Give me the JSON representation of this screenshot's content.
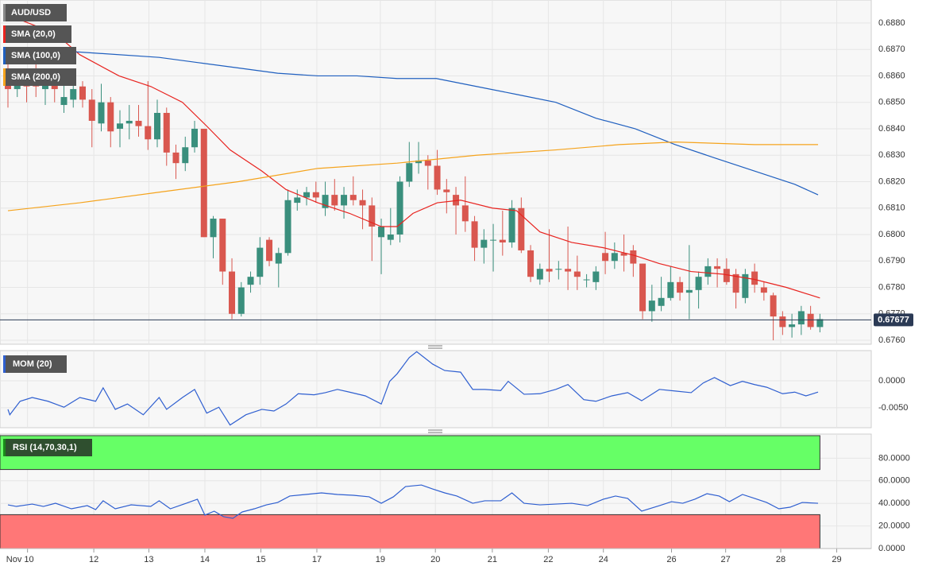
{
  "chart_data": [
    {
      "type": "candlestick",
      "title": "AUD/USD",
      "up_color": "#3a8f7d",
      "down_color": "#d9574f",
      "candles": {
        "open": [
          0.686,
          0.6855,
          0.6858,
          0.686,
          0.6855,
          0.6858,
          0.6849,
          0.6851,
          0.6856,
          0.6851,
          0.6842,
          0.685,
          0.684,
          0.6842,
          0.6843,
          0.6841,
          0.6836,
          0.6846,
          0.6831,
          0.6827,
          0.6833,
          0.684,
          0.6799,
          0.6806,
          0.6786,
          0.677,
          0.6781,
          0.6784,
          0.6798,
          0.6789,
          0.6793,
          0.6812,
          0.6814,
          0.6816,
          0.681,
          0.6815,
          0.6811,
          0.6815,
          0.6813,
          0.6811,
          0.6799,
          0.6798,
          0.68,
          0.682,
          0.6827,
          0.6828,
          0.6826,
          0.6817,
          0.6815,
          0.6811,
          0.6805,
          0.6795,
          0.6798,
          0.6798,
          0.6797,
          0.681,
          0.6794,
          0.6783,
          0.6787,
          0.6787,
          0.6787,
          0.6786,
          0.6783,
          0.6782,
          0.6793,
          0.679,
          0.6793,
          0.6794,
          0.6789,
          0.6771,
          0.6773,
          0.6776,
          0.6782,
          0.6778,
          0.6779,
          0.6784,
          0.6788,
          0.6787,
          0.6785,
          0.6776,
          0.6786,
          0.678,
          0.6777,
          0.6769,
          0.6765,
          0.6766,
          0.677,
          0.6765
        ],
        "high": [
          0.6866,
          0.686,
          0.6862,
          0.6866,
          0.686,
          0.6861,
          0.6858,
          0.686,
          0.6858,
          0.6855,
          0.6857,
          0.6852,
          0.6847,
          0.6849,
          0.6849,
          0.6858,
          0.6851,
          0.6848,
          0.6834,
          0.6837,
          0.6843,
          0.684,
          0.6807,
          0.6806,
          0.6791,
          0.6782,
          0.6786,
          0.6799,
          0.6799,
          0.6795,
          0.6817,
          0.6817,
          0.6818,
          0.682,
          0.682,
          0.6821,
          0.6818,
          0.6822,
          0.6817,
          0.6814,
          0.6806,
          0.681,
          0.6822,
          0.6835,
          0.6835,
          0.683,
          0.6832,
          0.6821,
          0.6818,
          0.6822,
          0.6807,
          0.6802,
          0.6804,
          0.6809,
          0.6813,
          0.6814,
          0.6796,
          0.6789,
          0.6802,
          0.679,
          0.6803,
          0.6792,
          0.6785,
          0.6788,
          0.6801,
          0.6797,
          0.68,
          0.6796,
          0.6789,
          0.6781,
          0.6784,
          0.6788,
          0.6784,
          0.6796,
          0.6786,
          0.6791,
          0.6791,
          0.6791,
          0.6787,
          0.6787,
          0.6789,
          0.6782,
          0.6778,
          0.6771,
          0.677,
          0.6773,
          0.6773,
          0.677
        ],
        "low": [
          0.6848,
          0.6852,
          0.685,
          0.6852,
          0.6849,
          0.685,
          0.6846,
          0.6848,
          0.6848,
          0.6833,
          0.6839,
          0.6833,
          0.6833,
          0.6836,
          0.6837,
          0.6832,
          0.6833,
          0.6826,
          0.6821,
          0.6824,
          0.6831,
          0.6799,
          0.6791,
          0.6781,
          0.6768,
          0.6769,
          0.6778,
          0.6781,
          0.6788,
          0.678,
          0.6792,
          0.6809,
          0.6811,
          0.6812,
          0.6807,
          0.6809,
          0.6806,
          0.6811,
          0.6802,
          0.679,
          0.6785,
          0.6796,
          0.6797,
          0.6818,
          0.6823,
          0.6817,
          0.6815,
          0.6808,
          0.68,
          0.6801,
          0.679,
          0.6789,
          0.6786,
          0.6792,
          0.6795,
          0.6793,
          0.6782,
          0.6781,
          0.6782,
          0.6783,
          0.6779,
          0.6779,
          0.678,
          0.6779,
          0.6785,
          0.6787,
          0.6786,
          0.6784,
          0.6768,
          0.6767,
          0.6771,
          0.6775,
          0.6775,
          0.6768,
          0.6772,
          0.6781,
          0.678,
          0.6781,
          0.6772,
          0.6774,
          0.6778,
          0.6775,
          0.676,
          0.6762,
          0.6761,
          0.6762,
          0.6764,
          0.6763
        ],
        "close": [
          0.6855,
          0.6858,
          0.6856,
          0.6856,
          0.6858,
          0.6855,
          0.6852,
          0.6855,
          0.6851,
          0.6843,
          0.685,
          0.6839,
          0.6842,
          0.6843,
          0.6841,
          0.6836,
          0.6846,
          0.6831,
          0.6827,
          0.6833,
          0.684,
          0.6799,
          0.6806,
          0.6786,
          0.677,
          0.678,
          0.6784,
          0.6795,
          0.679,
          0.6793,
          0.6813,
          0.6814,
          0.6816,
          0.6814,
          0.6815,
          0.6811,
          0.6815,
          0.6813,
          0.6811,
          0.6803,
          0.6803,
          0.68,
          0.682,
          0.6827,
          0.6828,
          0.6826,
          0.6817,
          0.6816,
          0.6811,
          0.6805,
          0.6795,
          0.6798,
          0.6798,
          0.6797,
          0.681,
          0.6794,
          0.6784,
          0.6787,
          0.6786,
          0.6787,
          0.6786,
          0.6784,
          0.6783,
          0.6786,
          0.679,
          0.6793,
          0.6792,
          0.6789,
          0.6771,
          0.6775,
          0.6776,
          0.6782,
          0.6778,
          0.6779,
          0.6784,
          0.6788,
          0.6787,
          0.6782,
          0.6778,
          0.6785,
          0.6781,
          0.6778,
          0.6769,
          0.6765,
          0.6766,
          0.6771,
          0.6765,
          0.6768
        ]
      },
      "lines": [
        {
          "name": "SMA (20,0)",
          "color": "#e8231f",
          "x": [
            0,
            5.1,
            7.7,
            11.9,
            15.3,
            18.7,
            21.3,
            23.8,
            27.2,
            29.8,
            33.2,
            36.6,
            40,
            41.7,
            43.4,
            46,
            48.5,
            51.9,
            54.5,
            57,
            60.4,
            63.8,
            67.2,
            69.8,
            73.2,
            76.6,
            80,
            83.4,
            87
          ],
          "values": [
            0.6883,
            0.6876,
            0.6868,
            0.686,
            0.6856,
            0.685,
            0.6841,
            0.6832,
            0.6824,
            0.6817,
            0.6812,
            0.6808,
            0.6803,
            0.6803,
            0.6808,
            0.6812,
            0.6813,
            0.681,
            0.6809,
            0.6801,
            0.6797,
            0.6795,
            0.6792,
            0.6789,
            0.6786,
            0.6785,
            0.6783,
            0.678,
            0.6776
          ]
        },
        {
          "name": "SMA (100,0)",
          "color": "#1f5fbf",
          "x": [
            0,
            7.7,
            16.2,
            20.4,
            24.7,
            28.9,
            33.2,
            37.4,
            41.7,
            45.9,
            50.2,
            54.5,
            58.7,
            63,
            67.2,
            71.5,
            75.7,
            80,
            84.3,
            86.8
          ],
          "values": [
            0.687,
            0.6869,
            0.6867,
            0.6865,
            0.6863,
            0.6861,
            0.686,
            0.686,
            0.6859,
            0.6859,
            0.6856,
            0.6853,
            0.685,
            0.6844,
            0.684,
            0.6834,
            0.6829,
            0.6824,
            0.6819,
            0.6815
          ]
        },
        {
          "name": "SMA (200,0)",
          "color": "#f5a31c",
          "x": [
            0,
            7.7,
            16.2,
            24.7,
            33.2,
            41.7,
            50.2,
            58.7,
            65.5,
            71.5,
            80,
            86.8
          ],
          "values": [
            0.6809,
            0.6812,
            0.6816,
            0.682,
            0.6825,
            0.6827,
            0.683,
            0.6832,
            0.6834,
            0.6835,
            0.6834,
            0.6834
          ]
        }
      ],
      "last": {
        "value": 0.67677,
        "label": "0.67677",
        "color": "#2b3a55"
      },
      "xlim": [
        -0.85,
        92.5
      ],
      "xticks": [
        {
          "value": 2.1,
          "label": "Nov 10"
        },
        {
          "value": 9.2,
          "label": "12"
        },
        {
          "value": 15.1,
          "label": "13"
        },
        {
          "value": 21.1,
          "label": "14"
        },
        {
          "value": 27.1,
          "label": "15"
        },
        {
          "value": 33.1,
          "label": "17"
        },
        {
          "value": 39.9,
          "label": "19"
        },
        {
          "value": 45.8,
          "label": "20"
        },
        {
          "value": 51.9,
          "label": "21"
        },
        {
          "value": 57.9,
          "label": "22"
        },
        {
          "value": 63.8,
          "label": "24"
        },
        {
          "value": 71.1,
          "label": "26"
        },
        {
          "value": 76.9,
          "label": "27"
        },
        {
          "value": 82.8,
          "label": "28"
        },
        {
          "value": 88.8,
          "label": "29"
        }
      ],
      "ylim": [
        0.67585,
        0.68887
      ],
      "yticks": [
        {
          "value": 0.676,
          "label": "0.6760"
        },
        {
          "value": 0.677,
          "label": "0.6770"
        },
        {
          "value": 0.678,
          "label": "0.6780"
        },
        {
          "value": 0.679,
          "label": "0.6790"
        },
        {
          "value": 0.68,
          "label": "0.6800"
        },
        {
          "value": 0.681,
          "label": "0.6810"
        },
        {
          "value": 0.682,
          "label": "0.6820"
        },
        {
          "value": 0.683,
          "label": "0.6830"
        },
        {
          "value": 0.684,
          "label": "0.6840"
        },
        {
          "value": 0.685,
          "label": "0.6850"
        },
        {
          "value": 0.686,
          "label": "0.6860"
        },
        {
          "value": 0.687,
          "label": "0.6870"
        },
        {
          "value": 0.688,
          "label": "0.6880"
        }
      ],
      "grid": true
    },
    {
      "type": "line",
      "series": [
        {
          "name": "MOM (20)",
          "color": "#2f5fd0",
          "x": [
            0,
            0.2,
            1.3,
            2.6,
            4.3,
            6.0,
            7.7,
            9.4,
            10.2,
            11.5,
            12.8,
            14.5,
            16.2,
            17.0,
            18.7,
            20.0,
            21.3,
            22.6,
            23.8,
            25.5,
            27.2,
            28.5,
            29.8,
            31.1,
            32.8,
            34.0,
            35.3,
            36.6,
            38.3,
            40.0,
            40.9,
            41.7,
            43.0,
            43.8,
            45.5,
            46.8,
            48.5,
            49.8,
            51.1,
            52.8,
            53.6,
            55.3,
            57.0,
            58.7,
            60.0,
            61.7,
            63.0,
            64.7,
            66.4,
            67.9,
            69.8,
            71.5,
            73.2,
            74.5,
            75.7,
            77.4,
            78.7,
            80.0,
            81.3,
            83.0,
            84.3,
            85.5,
            86.8
          ],
          "values": [
            -0.0053,
            -0.0063,
            -0.0038,
            -0.0031,
            -0.0038,
            -0.0049,
            -0.0031,
            -0.0038,
            -0.0013,
            -0.0053,
            -0.0043,
            -0.0063,
            -0.0031,
            -0.0053,
            -0.0031,
            -0.0016,
            -0.006,
            -0.0049,
            -0.0082,
            -0.0063,
            -0.0053,
            -0.0056,
            -0.0043,
            -0.0024,
            -0.0026,
            -0.0022,
            -0.0016,
            -0.0021,
            -0.0028,
            -0.0043,
            -0.0001,
            0.0013,
            0.0043,
            0.0054,
            0.0031,
            0.0019,
            0.0016,
            -0.0016,
            -0.0016,
            -0.0018,
            -0.0001,
            -0.0025,
            -0.0024,
            -0.0016,
            -0.0007,
            -0.0035,
            -0.0038,
            -0.0028,
            -0.0022,
            -0.0037,
            -0.0016,
            -0.0019,
            -0.0022,
            -0.0004,
            0.0006,
            -0.0009,
            -0.0001,
            -0.0007,
            -0.0012,
            -0.0024,
            -0.0021,
            -0.0028,
            -0.0021
          ]
        }
      ],
      "ylim": [
        -0.0087,
        0.0056
      ],
      "yticks": [
        {
          "value": 0,
          "label": "0.0000"
        },
        {
          "value": -0.005,
          "label": "-0.0050"
        }
      ]
    },
    {
      "type": "line",
      "series": [
        {
          "name": "RSI (14,70,30,1)",
          "color": "#2f5fd0",
          "x": [
            0,
            0.9,
            2.6,
            3.8,
            5.1,
            6.8,
            8.5,
            9.4,
            10.2,
            11.5,
            13.2,
            15.3,
            16.2,
            17.4,
            19.1,
            20.3,
            21.1,
            22.1,
            23.1,
            24.1,
            25.1,
            26.4,
            27.7,
            28.9,
            30.2,
            31.9,
            33.6,
            35.3,
            37.0,
            38.7,
            40.0,
            41.3,
            42.6,
            44.3,
            45.5,
            46.8,
            48.1,
            49.8,
            51.1,
            52.8,
            54.0,
            55.3,
            57.0,
            58.7,
            60.4,
            62.1,
            63.8,
            65.1,
            66.4,
            67.9,
            69.8,
            71.1,
            72.3,
            73.6,
            74.9,
            76.2,
            77.3,
            78.7,
            80.0,
            81.3,
            82.6,
            83.8,
            85.1,
            86.8
          ],
          "values": [
            38.7,
            37.3,
            39.4,
            37.3,
            40.1,
            35.2,
            38.0,
            34.5,
            42.3,
            35.2,
            38.7,
            37.3,
            42.3,
            35.2,
            40.1,
            43.7,
            29.6,
            33.1,
            28.2,
            26.8,
            32.4,
            35.2,
            38.7,
            40.8,
            46.5,
            47.9,
            49.3,
            47.9,
            47.2,
            45.8,
            40.1,
            45.8,
            54.9,
            56.3,
            52.8,
            49.3,
            46.5,
            40.1,
            42.3,
            42.3,
            49.3,
            40.1,
            38.7,
            39.4,
            40.1,
            38.0,
            43.7,
            46.5,
            44.4,
            33.1,
            38.0,
            41.5,
            40.1,
            43.7,
            48.6,
            46.5,
            41.5,
            47.9,
            44.4,
            40.8,
            35.2,
            36.6,
            40.8,
            40.1
          ]
        }
      ],
      "bands": {
        "upper": 70,
        "lower": 30,
        "upper_color": "#66ff66",
        "lower_color": "#ff7777"
      },
      "ylim": [
        0,
        101.4
      ],
      "yticks": [
        {
          "value": 0,
          "label": "0.0000"
        },
        {
          "value": 20,
          "label": "20.0000"
        },
        {
          "value": 40,
          "label": "40.0000"
        },
        {
          "value": 60,
          "label": "60.0000"
        },
        {
          "value": 80,
          "label": "80.0000"
        }
      ]
    }
  ]
}
